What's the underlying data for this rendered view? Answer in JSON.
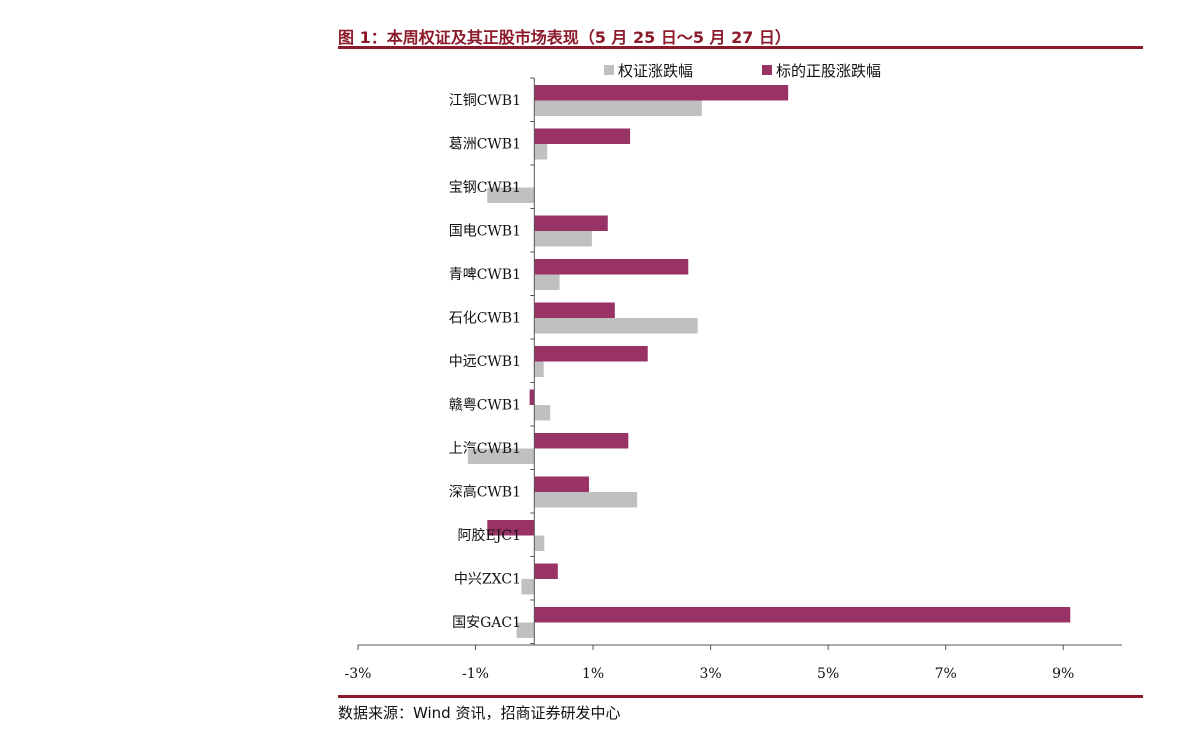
{
  "figure": {
    "title": "图 1：本周权证及其正股市场表现（5 月 25 日～5 月 27 日）",
    "source": "数据来源：Wind 资讯，招商证券研发中心",
    "accent_color": "#8b1a2b"
  },
  "chart_data": {
    "type": "bar",
    "orientation": "horizontal",
    "categories": [
      "江铜CWB1",
      "葛洲CWB1",
      "宝钢CWB1",
      "国电CWB1",
      "青啤CWB1",
      "石化CWB1",
      "中远CWB1",
      "赣粤CWB1",
      "上汽CWB1",
      "深高CWB1",
      "阿胶EJC1",
      "中兴ZXC1",
      "国安GAC1"
    ],
    "series": [
      {
        "name": "权证涨跌幅",
        "color": "#c0c0c0",
        "values": [
          2.85,
          0.22,
          -0.8,
          0.98,
          0.43,
          2.78,
          0.16,
          0.27,
          -1.13,
          1.75,
          0.17,
          -0.22,
          -0.3
        ]
      },
      {
        "name": "标的正股涨跌幅",
        "color": "#993366",
        "values": [
          4.32,
          1.63,
          0.0,
          1.25,
          2.62,
          1.37,
          1.93,
          -0.08,
          1.6,
          0.93,
          -0.8,
          0.4,
          9.12
        ]
      }
    ],
    "xlim": [
      -3,
      10
    ],
    "xticks": [
      -3,
      -1,
      1,
      3,
      5,
      7,
      9
    ],
    "xtick_labels": [
      "-3%",
      "-1%",
      "1%",
      "3%",
      "5%",
      "7%",
      "9%"
    ],
    "legend_position": "top",
    "grid": false
  }
}
